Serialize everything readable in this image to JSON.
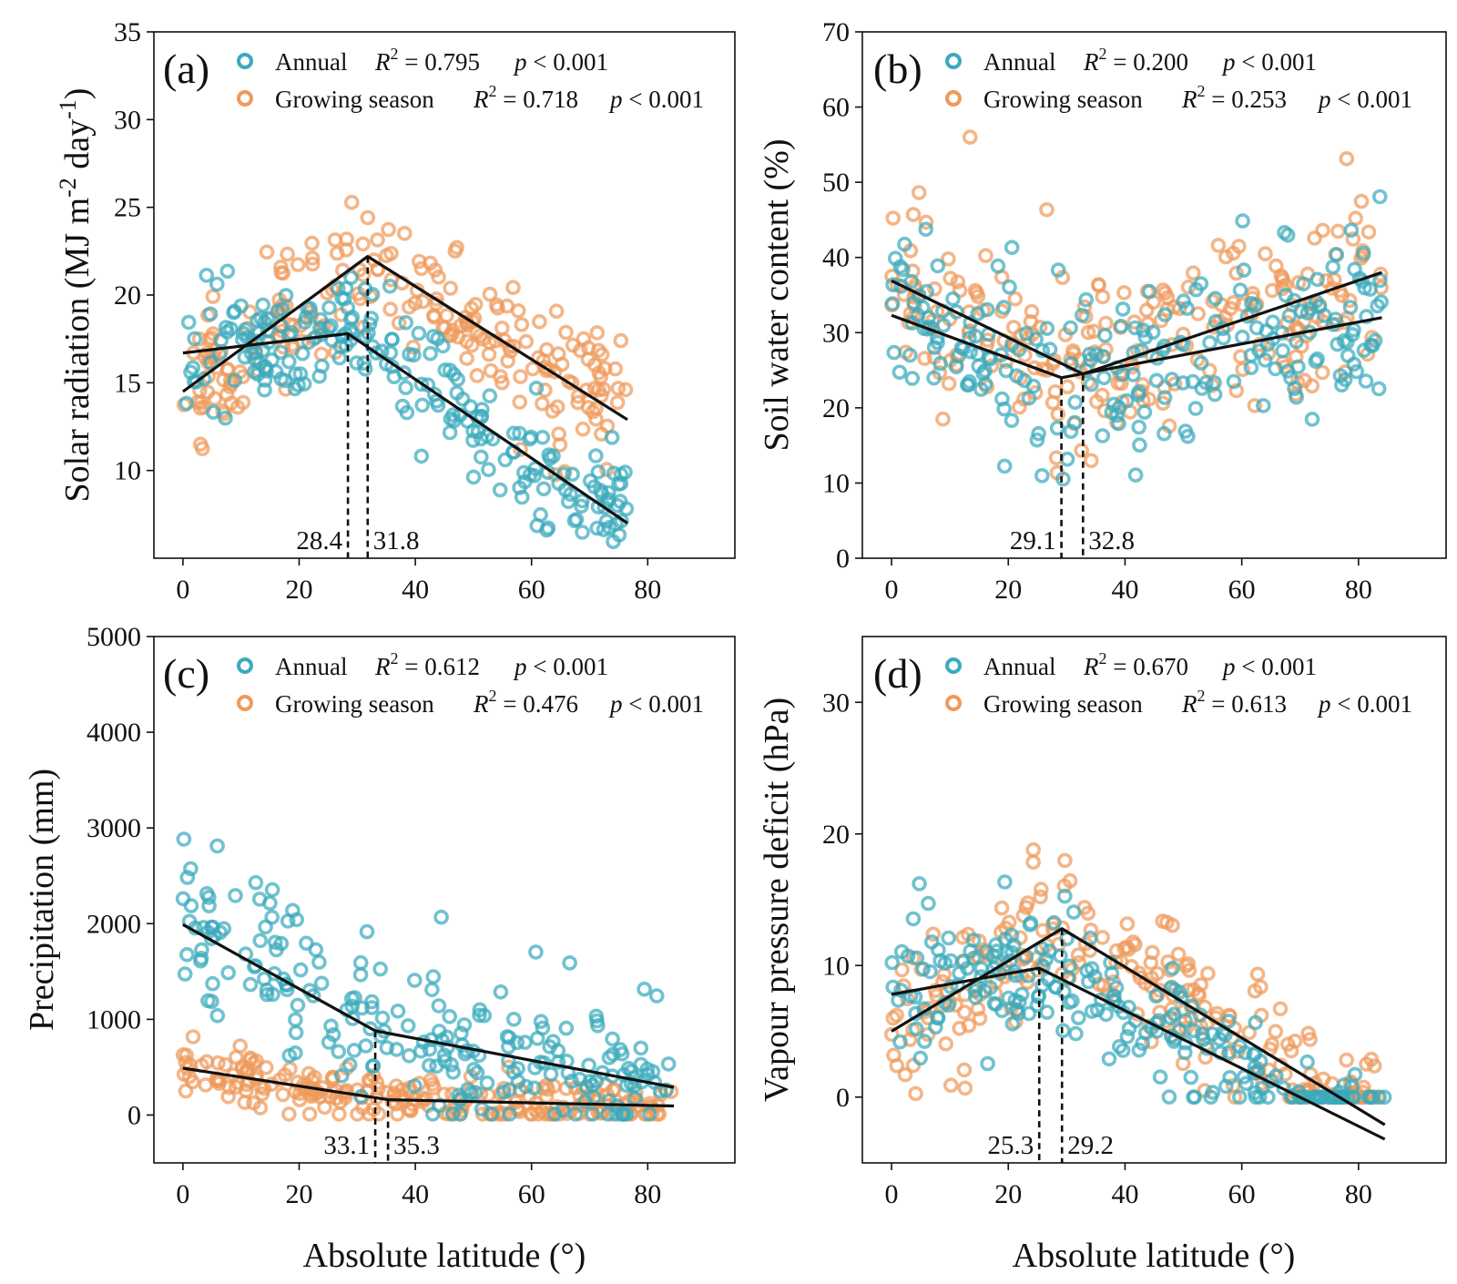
{
  "figure": {
    "shared_xlabel": "Absolute latitude (°)",
    "colors": {
      "annual": "#3aabbd",
      "growing": "#ef9a5b",
      "fit": "#111111"
    },
    "legend_labels": {
      "annual": "Annual",
      "growing": "Growing season",
      "r2_prefix": "R",
      "r2_exp": "2",
      "p_prefix": "p",
      "p_suffix": " < 0.001"
    }
  },
  "chart_data": [
    {
      "id": "a",
      "type": "scatter",
      "tag": "(a)",
      "ylabel": "Solar radiation (MJ m-2 day-1)",
      "ylabel_parts": {
        "pre": "Solar radiation (MJ m",
        "sup1": "-2",
        "mid": " day",
        "sup2": "-1",
        "post": ")"
      },
      "xlim": [
        -5,
        95
      ],
      "ylim": [
        5,
        35
      ],
      "xticks": [
        0,
        20,
        40,
        60,
        80
      ],
      "yticks": [
        10,
        15,
        20,
        25,
        30,
        35
      ],
      "legend": [
        {
          "name": "Annual",
          "r2": "0.795",
          "p": "< 0.001"
        },
        {
          "name": "Growing season",
          "r2": "0.718",
          "p": "< 0.001"
        }
      ],
      "series": [
        {
          "name": "Annual",
          "fit": [
            [
              0,
              16.7
            ],
            [
              28.4,
              17.8
            ],
            [
              76.5,
              7.0
            ]
          ],
          "breakpoint": 28.4
        },
        {
          "name": "Growing season",
          "fit": [
            [
              0,
              14.5
            ],
            [
              31.8,
              22.2
            ],
            [
              76.5,
              12.9
            ]
          ],
          "breakpoint": 31.8
        }
      ],
      "breakpoint_labels": [
        "28.4",
        "31.8"
      ]
    },
    {
      "id": "b",
      "type": "scatter",
      "tag": "(b)",
      "ylabel": "Soil water content (%)",
      "xlim": [
        -5,
        95
      ],
      "ylim": [
        0,
        70
      ],
      "xticks": [
        0,
        20,
        40,
        60,
        80
      ],
      "yticks": [
        0,
        10,
        20,
        30,
        40,
        50,
        60,
        70
      ],
      "legend": [
        {
          "name": "Annual",
          "r2": "0.200",
          "p": "< 0.001"
        },
        {
          "name": "Growing season",
          "r2": "0.253",
          "p": "< 0.001"
        }
      ],
      "series": [
        {
          "name": "Annual",
          "fit": [
            [
              0,
              32.3
            ],
            [
              29.1,
              24.0
            ],
            [
              84,
              32.0
            ]
          ],
          "breakpoint": 29.1
        },
        {
          "name": "Growing season",
          "fit": [
            [
              0,
              36.9
            ],
            [
              32.8,
              24.5
            ],
            [
              84,
              38.0
            ]
          ],
          "breakpoint": 32.8
        }
      ],
      "breakpoint_labels": [
        "29.1",
        "32.8"
      ]
    },
    {
      "id": "c",
      "type": "scatter",
      "tag": "(c)",
      "ylabel": "Precipitation (mm)",
      "xlim": [
        -5,
        95
      ],
      "ylim": [
        -500,
        5000
      ],
      "xticks": [
        0,
        20,
        40,
        60,
        80
      ],
      "yticks": [
        0,
        1000,
        2000,
        3000,
        4000,
        5000
      ],
      "legend": [
        {
          "name": "Annual",
          "r2": "0.612",
          "p": "< 0.001"
        },
        {
          "name": "Growing season",
          "r2": "0.476",
          "p": "< 0.001"
        }
      ],
      "series": [
        {
          "name": "Annual",
          "fit": [
            [
              0,
              1990
            ],
            [
              33.1,
              880
            ],
            [
              84.5,
              290
            ]
          ],
          "breakpoint": 33.1
        },
        {
          "name": "Growing season",
          "fit": [
            [
              0,
              490
            ],
            [
              35.3,
              160
            ],
            [
              84.5,
              95
            ]
          ],
          "breakpoint": 35.3
        }
      ],
      "breakpoint_labels": [
        "33.1",
        "35.3"
      ]
    },
    {
      "id": "d",
      "type": "scatter",
      "tag": "(d)",
      "ylabel": "Vapour pressure deficit (hPa)",
      "xlim": [
        -5,
        95
      ],
      "ylim": [
        -5,
        35
      ],
      "xticks": [
        0,
        20,
        40,
        60,
        80
      ],
      "yticks": [
        0,
        10,
        20,
        30
      ],
      "legend": [
        {
          "name": "Annual",
          "r2": "0.670",
          "p": "< 0.001"
        },
        {
          "name": "Growing season",
          "r2": "0.613",
          "p": "< 0.001"
        }
      ],
      "series": [
        {
          "name": "Annual",
          "fit": [
            [
              0,
              7.8
            ],
            [
              25.3,
              9.8
            ],
            [
              84.5,
              -3.2
            ]
          ],
          "breakpoint": 25.3
        },
        {
          "name": "Growing season",
          "fit": [
            [
              0,
              5.0
            ],
            [
              29.2,
              12.8
            ],
            [
              84.5,
              -2.1
            ]
          ],
          "breakpoint": 29.2
        }
      ],
      "breakpoint_labels": [
        "25.3",
        "29.2"
      ]
    }
  ]
}
